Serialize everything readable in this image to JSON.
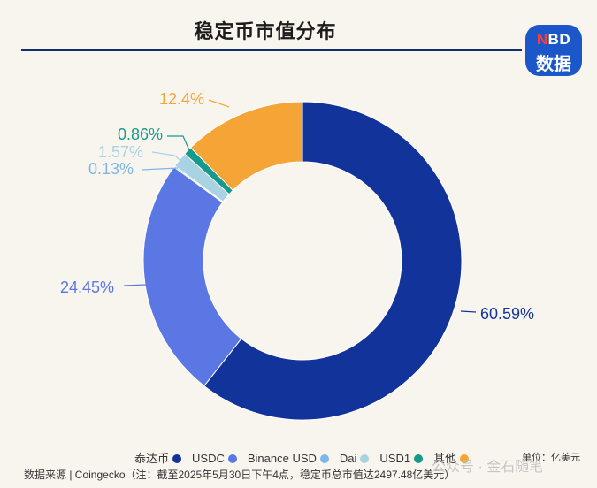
{
  "header": {
    "title": "稳定币市值分布"
  },
  "logo": {
    "line1_n": "N",
    "line1_rest": "BD",
    "line2": "数据",
    "color": "#1b57c8"
  },
  "chart_data": {
    "type": "pie",
    "title": "稳定币市值分布",
    "donut": true,
    "categories": [
      "泰达币",
      "USDC",
      "Binance USD",
      "Dai",
      "USD1",
      "其他"
    ],
    "values": [
      60.59,
      24.45,
      0.13,
      1.57,
      0.86,
      12.4
    ],
    "labels": [
      "60.59%",
      "24.45%",
      "0.13%",
      "1.57%",
      "0.86%",
      "12.4%"
    ],
    "colors": [
      "#12339a",
      "#5b77e3",
      "#7eb6ea",
      "#a9d3e3",
      "#169a8c",
      "#f4a536"
    ],
    "legend_position": "bottom"
  },
  "footer": {
    "unit": "单位：亿美元",
    "source": "数据来源 | Coingecko（注：截至2025年5月30日下午4点，稳定币总市值达2497.48亿美元）",
    "watermark": "公众号 · 金石随笔"
  }
}
